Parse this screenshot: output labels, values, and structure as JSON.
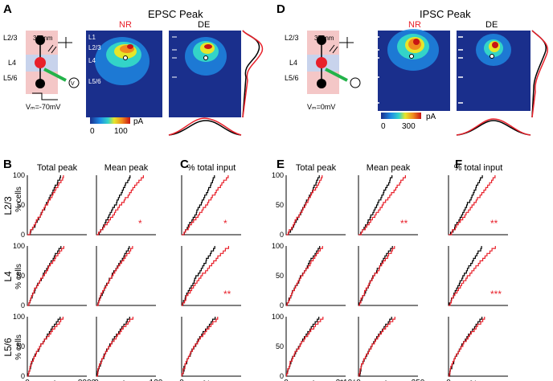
{
  "panels": {
    "A": "A",
    "B": "B",
    "C": "C",
    "D": "D",
    "E": "E",
    "F": "F"
  },
  "epsc": {
    "title": "EPSC Peak",
    "map_nr": "NR",
    "map_de": "DE",
    "laser": "355nm",
    "vm": "Vₘ=-70mV",
    "colorbar_min": "0",
    "colorbar_max": "100",
    "colorbar_unit": "pA",
    "schematic_layers": [
      "L2/3",
      "L4",
      "L5/6"
    ],
    "map_layers": [
      "L1",
      "L2/3",
      "L4",
      "L5/6"
    ]
  },
  "ipsc": {
    "title": "IPSC Peak",
    "map_nr": "NR",
    "map_de": "DE",
    "laser": "355nm",
    "vm": "Vₘ=0mV",
    "colorbar_min": "0",
    "colorbar_max": "300",
    "colorbar_unit": "pA",
    "schematic_layers": [
      "L2/3",
      "L4",
      "L5/6"
    ]
  },
  "colors": {
    "nr": "#e8202a",
    "de": "#000000",
    "map_bg": "#1a2f8c"
  },
  "row_labels": [
    "L2/3",
    "L4",
    "L5/6"
  ],
  "y_label": "% cells",
  "y_ticks": [
    "0",
    "50",
    "100"
  ],
  "cdf_columns": [
    {
      "header": "Total peak",
      "xmax": "8000",
      "unit": "pA",
      "stars": [
        "",
        "",
        ""
      ]
    },
    {
      "header": "Mean peak",
      "xmax": "120",
      "unit": "pA",
      "stars": [
        "*",
        "",
        ""
      ]
    },
    {
      "header": "% total input",
      "xmax": "",
      "unit": "%",
      "stars": [
        "*",
        "**",
        ""
      ]
    },
    {
      "header": "Total peak",
      "xmax": "2*10⁴",
      "unit": "pA",
      "stars": [
        "",
        "",
        ""
      ]
    },
    {
      "header": "Mean peak",
      "xmax": "250",
      "unit": "pA",
      "stars": [
        "**",
        "",
        ""
      ]
    },
    {
      "header": "% total input",
      "xmax": "",
      "unit": "%",
      "stars": [
        "**",
        "***",
        ""
      ]
    }
  ],
  "x_zero": "0"
}
